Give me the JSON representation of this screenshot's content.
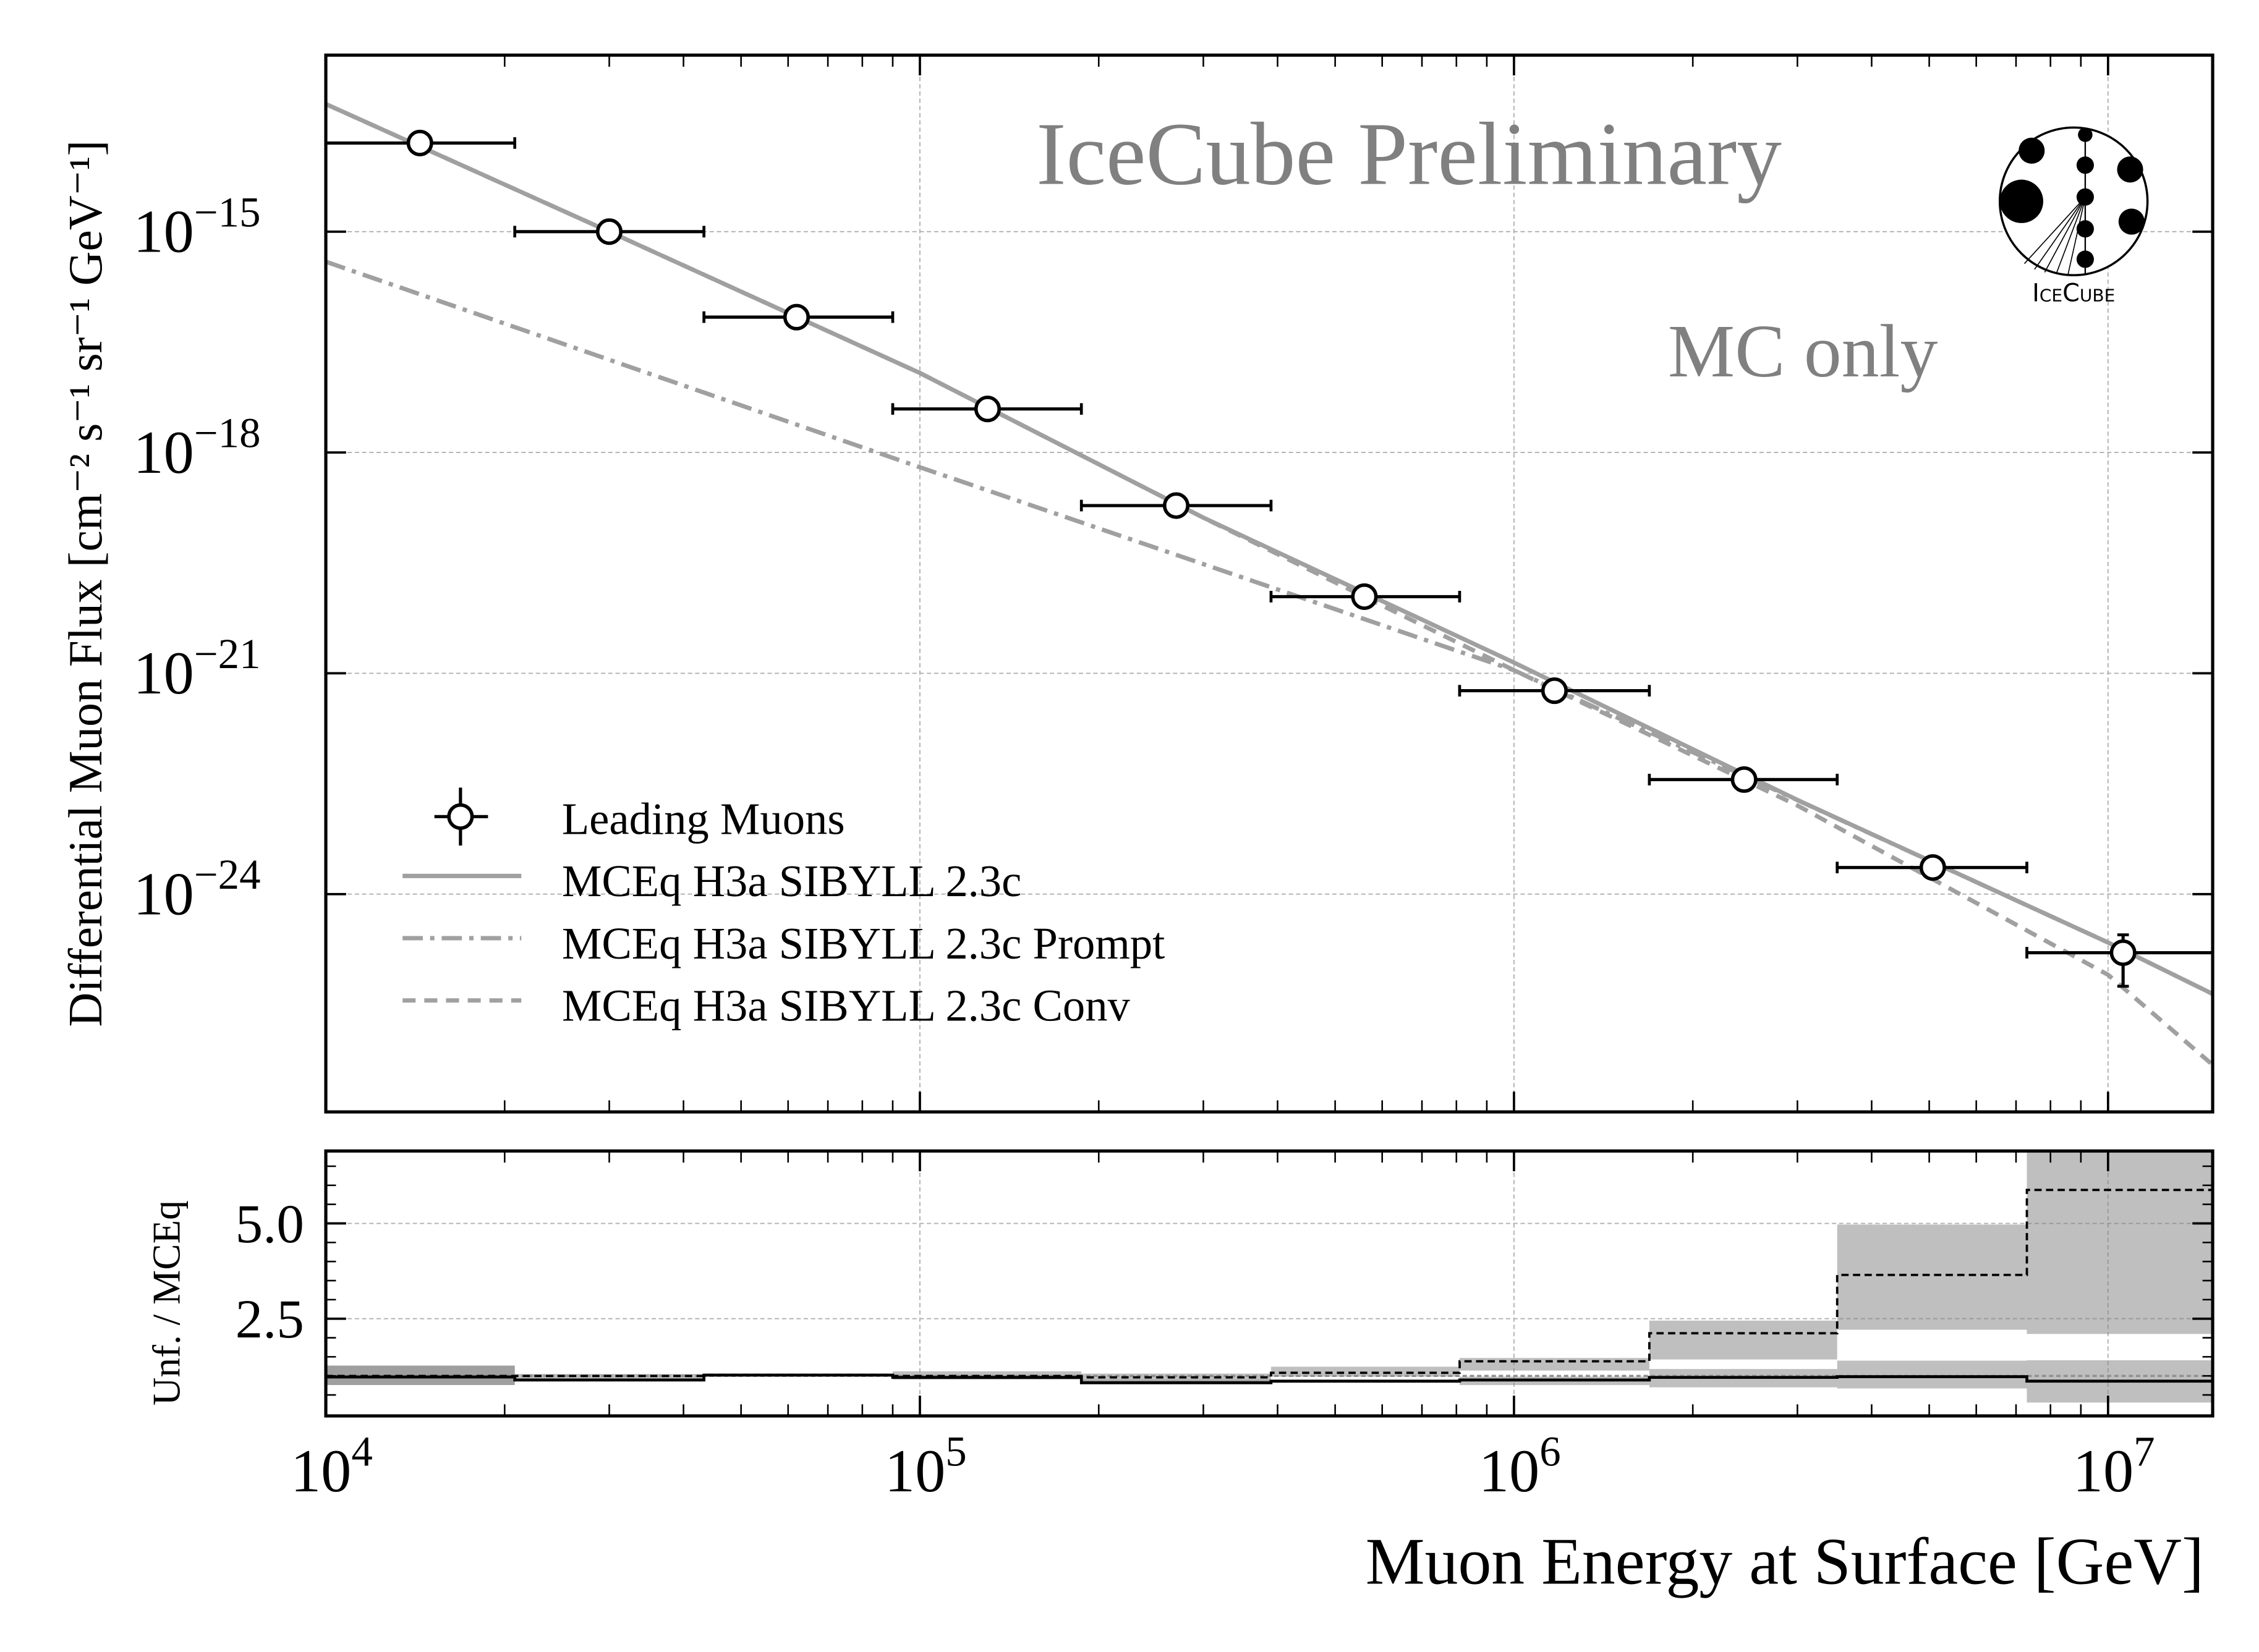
{
  "chart_data": [
    {
      "panel": "main",
      "type": "scatter",
      "xscale": "log",
      "yscale": "log",
      "xlim": [
        10000,
        15000000
      ],
      "ylim": [
        2.5e-13,
        1.1e-27
      ],
      "grid": true,
      "xlabel": "",
      "ylabel": "Differential Muon Flux [cm⁻² s⁻¹ sr⁻¹ GeV⁻¹]",
      "yticks": [
        {
          "value": 1e-15,
          "base": "10",
          "exp": "−15"
        },
        {
          "value": 1e-18,
          "base": "10",
          "exp": "−18"
        },
        {
          "value": 1e-21,
          "base": "10",
          "exp": "−21"
        },
        {
          "value": 1e-24,
          "base": "10",
          "exp": "−24"
        }
      ],
      "annotations": {
        "watermark": "IceCube Preliminary",
        "note": "MC only",
        "logo_text": "IceCube"
      },
      "legend_position": "lower-left",
      "bin_edges": [
        10000,
        20800,
        43300,
        90000,
        187000,
        390000,
        810000,
        1690000,
        3500000,
        7300000,
        15000000
      ],
      "points": {
        "name": "Leading Muons",
        "x": [
          14400,
          30000,
          62000,
          130000,
          270000,
          560000,
          1170000,
          2440000,
          5070000,
          10600000
        ],
        "y": [
          1.6e-14,
          1e-15,
          6.9e-17,
          3.9e-18,
          1.9e-19,
          1.1e-20,
          5.8e-22,
          3.6e-23,
          2.3e-24,
          1.6e-25
        ],
        "y_low": [
          1.6e-14,
          1e-15,
          6.9e-17,
          3.9e-18,
          1.9e-19,
          1.1e-20,
          5.8e-22,
          3.6e-23,
          1.7e-24,
          5.6e-26
        ],
        "y_high": [
          1.6e-14,
          1e-15,
          6.9e-17,
          3.9e-18,
          1.9e-19,
          1.1e-20,
          5.8e-22,
          3.6e-23,
          2.9e-24,
          2.8e-25
        ]
      },
      "series": [
        {
          "name": "MCEq H3a SIBYLL 2.3c",
          "style": "solid",
          "color": "#a0a0a0",
          "x": [
            10000,
            30000,
            100000,
            300000,
            1000000,
            3000000,
            10000000,
            15000000
          ],
          "y": [
            5.4e-14,
            1e-15,
            1.2e-17,
            1.3e-19,
            1.4e-21,
            1.9e-23,
            2.2e-25,
            4.4e-26
          ]
        },
        {
          "name": "MCEq H3a SIBYLL 2.3c Prompt",
          "style": "dashdot",
          "color": "#a0a0a0",
          "x": [
            10000,
            100000,
            1000000,
            10000000,
            15000000
          ],
          "y": [
            3.9e-16,
            6.3e-19,
            1.1e-21,
            2.2e-25,
            4.4e-26
          ]
        },
        {
          "name": "MCEq H3a SIBYLL 2.3c Conv",
          "style": "dashed",
          "color": "#a0a0a0",
          "x": [
            10000,
            30000,
            100000,
            300000,
            1000000,
            3000000,
            10000000,
            15000000
          ],
          "y": [
            5.4e-14,
            1e-15,
            1.2e-17,
            1.3e-19,
            1.1e-21,
            1.6e-23,
            8e-26,
            4.8e-27
          ]
        }
      ]
    },
    {
      "panel": "ratio",
      "type": "line",
      "xscale": "log",
      "xlim": [
        10000,
        15000000
      ],
      "ylim": [
        -0.05,
        6.9
      ],
      "grid": true,
      "xlabel": "Muon Energy at Surface [GeV]",
      "ylabel": "Unf. / MCEq",
      "xticks": [
        {
          "value": 10000,
          "base": "10",
          "exp": "4"
        },
        {
          "value": 100000,
          "base": "10",
          "exp": "5"
        },
        {
          "value": 1000000,
          "base": "10",
          "exp": "6"
        },
        {
          "value": 10000000,
          "base": "10",
          "exp": "7"
        }
      ],
      "yticks": [
        {
          "value": 2.5,
          "label": "2.5"
        },
        {
          "value": 5.0,
          "label": "5.0"
        }
      ],
      "reference_line": 1.0,
      "unfolded_ratio": [
        1.0,
        1.0,
        1.03,
        1.0,
        0.96,
        1.08,
        1.38,
        2.12,
        3.65,
        5.88
      ],
      "unfolded_band": [
        [
          0.76,
          1.27
        ],
        [
          0.9,
          1.05
        ],
        [
          0.98,
          1.06
        ],
        [
          0.9,
          1.12
        ],
        [
          0.83,
          1.06
        ],
        [
          0.98,
          1.24
        ],
        [
          1.14,
          1.47
        ],
        [
          1.43,
          2.45
        ],
        [
          2.21,
          4.97
        ],
        [
          2.1,
          8.0
        ]
      ],
      "mc_ratio": [
        0.97,
        0.89,
        1.02,
        0.96,
        0.82,
        0.86,
        0.89,
        0.96,
        0.98,
        0.86
      ],
      "mc_band": [
        [
          0.76,
          1.27
        ],
        [
          0.86,
          0.93
        ],
        [
          0.98,
          1.04
        ],
        [
          0.92,
          1.0
        ],
        [
          0.8,
          0.9
        ],
        [
          0.82,
          0.9
        ],
        [
          0.76,
          0.98
        ],
        [
          0.7,
          1.18
        ],
        [
          0.67,
          1.4
        ],
        [
          0.3,
          1.41
        ]
      ],
      "band_color": "#bfbfbf"
    }
  ]
}
